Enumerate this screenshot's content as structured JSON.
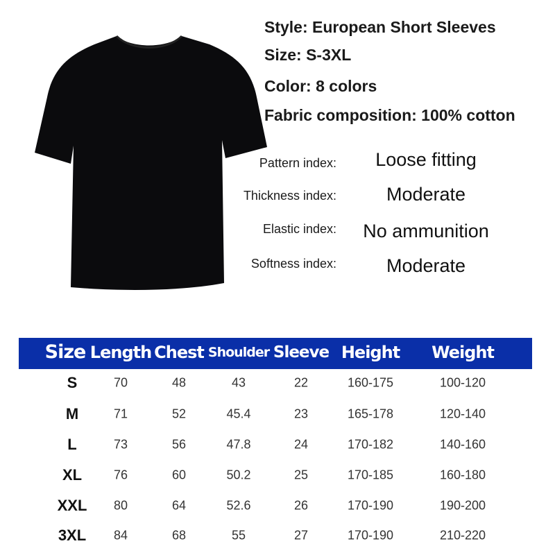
{
  "specs": [
    "Style: European Short Sleeves",
    "Size: S-3XL",
    "Color: 8 colors",
    "Fabric composition: 100% cotton"
  ],
  "indices": [
    {
      "label": "Pattern index:",
      "value": "Loose fitting"
    },
    {
      "label": "Thickness index:",
      "value": "Moderate"
    },
    {
      "label": "Elastic index:",
      "value": "No ammunition"
    },
    {
      "label": "Softness index:",
      "value": "Moderate"
    }
  ],
  "table": {
    "header_color": "#0a2fa8",
    "columns": [
      "Size",
      "Length",
      "Chest",
      "Shoulder",
      "Sleeve",
      "Height",
      "Weight"
    ],
    "rows": [
      [
        "S",
        "70",
        "48",
        "43",
        "22",
        "160-175",
        "100-120"
      ],
      [
        "M",
        "71",
        "52",
        "45.4",
        "23",
        "165-178",
        "120-140"
      ],
      [
        "L",
        "73",
        "56",
        "47.8",
        "24",
        "170-182",
        "140-160"
      ],
      [
        "XL",
        "76",
        "60",
        "50.2",
        "25",
        "170-185",
        "160-180"
      ],
      [
        "XXL",
        "80",
        "64",
        "52.6",
        "26",
        "170-190",
        "190-200"
      ],
      [
        "3XL",
        "84",
        "68",
        "55",
        "27",
        "170-190",
        "210-220"
      ]
    ]
  },
  "product_image": {
    "icon": "black-tshirt",
    "color": "#0b0b0d"
  }
}
